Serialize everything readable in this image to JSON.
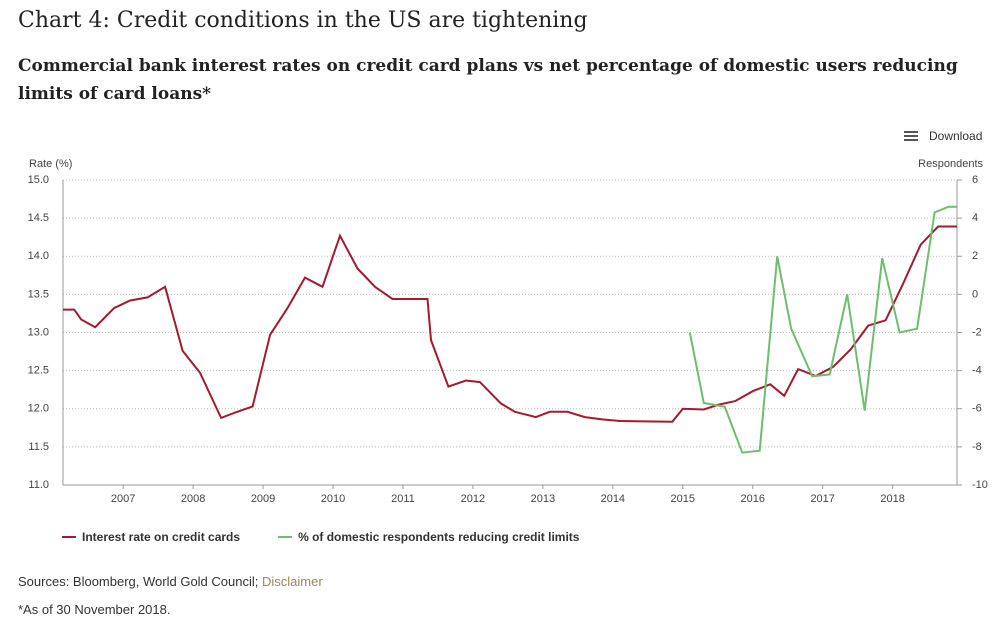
{
  "chart_data": {
    "type": "line",
    "title": "Chart 4: Credit conditions in the US are tightening",
    "subtitle": "Commercial bank interest rates on credit card plans vs net percentage of domestic users reducing limits of card loans*",
    "download": "Download",
    "y_label": "Rate (%)",
    "y2_label": "Respondents",
    "source": "Sources: Bloomberg, World Gold Council;",
    "source_link": "Disclaimer",
    "footnote": "*As of 30 November 2018.",
    "xlim": [
      2006.14,
      2018.92
    ],
    "xticks": [
      2007,
      2008,
      2009,
      2010,
      2011,
      2012,
      2013,
      2014,
      2015,
      2016,
      2017,
      2018
    ],
    "ylim": [
      11,
      15
    ],
    "yticks": [
      {
        "value": 11,
        "label": "11.0"
      },
      {
        "value": 11.5,
        "label": "11.5"
      },
      {
        "value": 12,
        "label": "12.0"
      },
      {
        "value": 12.5,
        "label": "12.5"
      },
      {
        "value": 13,
        "label": "13.0"
      },
      {
        "value": 13.5,
        "label": "13.5"
      },
      {
        "value": 14,
        "label": "14.0"
      },
      {
        "value": 14.5,
        "label": "14.5"
      },
      {
        "value": 15,
        "label": "15.0"
      }
    ],
    "y2lim": [
      -10,
      6
    ],
    "y2ticks": [
      -10,
      -8,
      -6,
      -4,
      -2,
      0,
      2,
      4,
      6
    ],
    "grid": true,
    "series": [
      {
        "name": "Interest rate on credit cards",
        "color": "#a6192e",
        "x": [
          2006.14,
          2006.3,
          2006.4,
          2006.6,
          2006.87,
          2007.1,
          2007.35,
          2007.6,
          2007.85,
          2008.1,
          2008.4,
          2008.6,
          2008.85,
          2009.1,
          2009.35,
          2009.6,
          2009.85,
          2010.1,
          2010.35,
          2010.6,
          2010.85,
          2011.35,
          2011.4,
          2011.65,
          2011.9,
          2012.1,
          2012.4,
          2012.6,
          2012.9,
          2013.1,
          2013.35,
          2013.6,
          2013.85,
          2014.1,
          2014.85,
          2015.0,
          2015.3,
          2015.5,
          2015.75,
          2016.0,
          2016.25,
          2016.45,
          2016.65,
          2016.9,
          2017.15,
          2017.4,
          2017.65,
          2017.9,
          2018.15,
          2018.4,
          2018.65,
          2018.92
        ],
        "values": [
          13.3,
          13.3,
          13.17,
          13.07,
          13.32,
          13.42,
          13.46,
          13.6,
          12.76,
          12.47,
          11.88,
          11.95,
          12.03,
          12.97,
          13.32,
          13.72,
          13.6,
          14.27,
          13.84,
          13.6,
          13.44,
          13.44,
          12.9,
          12.29,
          12.37,
          12.35,
          12.07,
          11.96,
          11.89,
          11.96,
          11.96,
          11.89,
          11.86,
          11.84,
          11.83,
          12.0,
          11.99,
          12.05,
          12.1,
          12.23,
          12.32,
          12.17,
          12.52,
          12.43,
          12.55,
          12.78,
          13.09,
          13.16,
          13.64,
          14.15,
          14.39,
          14.39
        ]
      },
      {
        "name": "% of domestic respondents reducing credit limits",
        "color": "#6cbf6c",
        "axis": "y2",
        "x": [
          2015.1,
          2015.3,
          2015.6,
          2015.85,
          2016.1,
          2016.35,
          2016.55,
          2016.85,
          2017.1,
          2017.35,
          2017.6,
          2017.85,
          2018.1,
          2018.35,
          2018.6,
          2018.8,
          2018.92
        ],
        "values": [
          -2,
          -5.7,
          -5.9,
          -8.3,
          -8.2,
          2,
          -1.8,
          -4.3,
          -4.2,
          0,
          -6.1,
          1.9,
          -2,
          -1.8,
          4.3,
          4.6,
          4.6
        ]
      }
    ]
  }
}
